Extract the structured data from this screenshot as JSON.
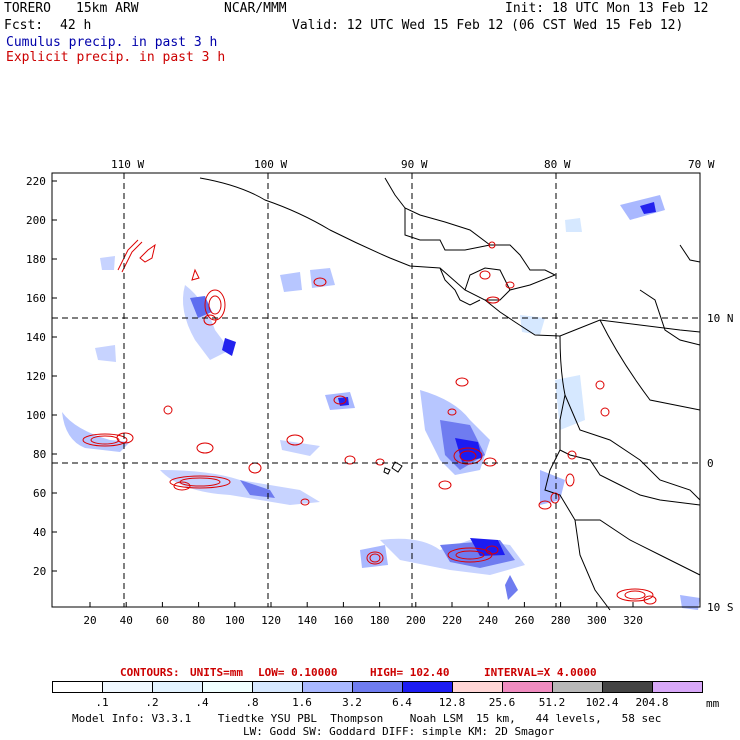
{
  "header": {
    "model": "TORERO",
    "resolution": "15km ARW",
    "org": "NCAR/MMM",
    "init": "Init: 18 UTC Mon 13 Feb 12",
    "fcst_label": "Fcst:",
    "fcst_value": "42 h",
    "valid": "Valid: 12 UTC Wed 15 Feb 12 (06 CST Wed 15 Feb 12)",
    "cumulus": "Cumulus precip. in past 3 h",
    "explicit": "Explicit precip. in past 3 h"
  },
  "map": {
    "lon_labels": [
      "110 W",
      "100 W",
      "90 W",
      "80 W",
      "70 W"
    ],
    "lat_labels": [
      "10 N",
      "0",
      "10 S"
    ],
    "y_ticks": [
      "220",
      "200",
      "180",
      "160",
      "140",
      "120",
      "100",
      "80",
      "60",
      "40",
      "20"
    ],
    "x_ticks": [
      "20",
      "40",
      "60",
      "80",
      "100",
      "120",
      "140",
      "160",
      "180",
      "200",
      "220",
      "240",
      "260",
      "280",
      "300",
      "320"
    ]
  },
  "contours": {
    "label": "CONTOURS:",
    "units": "UNITS=mm",
    "low": "LOW= 0.10000",
    "high": "HIGH= 102.40",
    "interval": "INTERVAL=X 4.0000"
  },
  "colorbar": {
    "labels": [
      ".1",
      ".2",
      ".4",
      ".8",
      "1.6",
      "3.2",
      "6.4",
      "12.8",
      "25.6",
      "51.2",
      "102.4",
      "204.8"
    ],
    "colors": [
      "#ffffff",
      "#f0f8ff",
      "#e3f3ff",
      "#f0ffff",
      "#d6e8ff",
      "#a9b8ff",
      "#6f7cf0",
      "#1c1cf2",
      "#ffd6d6",
      "#f08cc0",
      "#b8b8b8",
      "#444444",
      "#d8a8f8"
    ],
    "unit": "mm"
  },
  "footer": {
    "line1": "Model Info: V3.3.1    Tiedtke YSU PBL  Thompson    Noah LSM  15 km,   44 levels,   58 sec",
    "line2": "LW: Godd SW: Goddard DIFF: simple KM: 2D Smagor"
  }
}
